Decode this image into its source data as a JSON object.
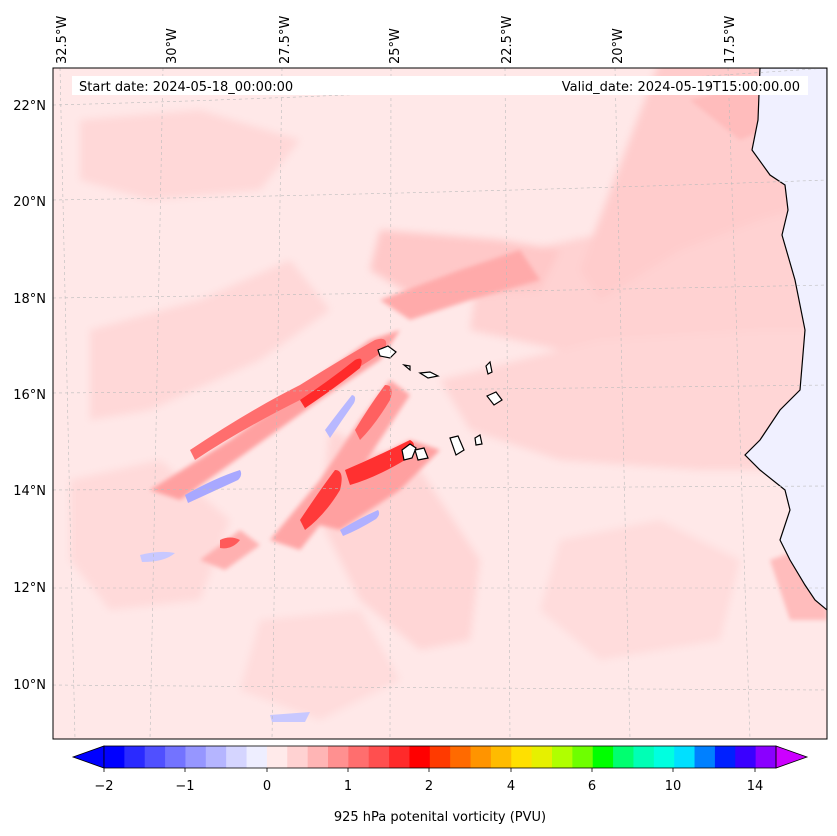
{
  "header": {
    "start_date": "Start date: 2024-05-18_00:00:00",
    "valid_date": "Valid_date: 2024-05-19T15:00:00.00"
  },
  "axes": {
    "longitude_labels": [
      "32.5°W",
      "30°W",
      "27.5°W",
      "25°W",
      "22.5°W",
      "20°W",
      "17.5°W"
    ],
    "latitude_labels": [
      "22°N",
      "20°N",
      "18°N",
      "16°N",
      "14°N",
      "12°N",
      "10°N"
    ]
  },
  "colorbar": {
    "title": "925 hPa potenital vorticity (PVU)",
    "tick_labels": [
      "−2",
      "−1",
      "0",
      "1",
      "2",
      "4",
      "6",
      "10",
      "14"
    ],
    "colors": [
      "#0000ff",
      "#2a2aff",
      "#5050ff",
      "#7373ff",
      "#9696ff",
      "#b5b5ff",
      "#d5d5ff",
      "#eeeeff",
      "#ffeaea",
      "#ffd2d2",
      "#ffb5b5",
      "#ff9090",
      "#ff6e6e",
      "#ff4f4f",
      "#ff2a2a",
      "#ff0000",
      "#ff3a00",
      "#ff6a00",
      "#ff9400",
      "#ffbb00",
      "#ffe000",
      "#e6f000",
      "#b0ff00",
      "#6eff00",
      "#00ff00",
      "#00ff70",
      "#00ffb5",
      "#00ffe0",
      "#00e0ff",
      "#0080ff",
      "#0020ff",
      "#3a00ff",
      "#8a00ff"
    ]
  },
  "map": {
    "background": "#ffe8e8",
    "land_color": "#f0f0ff",
    "coast_color": "#000000"
  }
}
